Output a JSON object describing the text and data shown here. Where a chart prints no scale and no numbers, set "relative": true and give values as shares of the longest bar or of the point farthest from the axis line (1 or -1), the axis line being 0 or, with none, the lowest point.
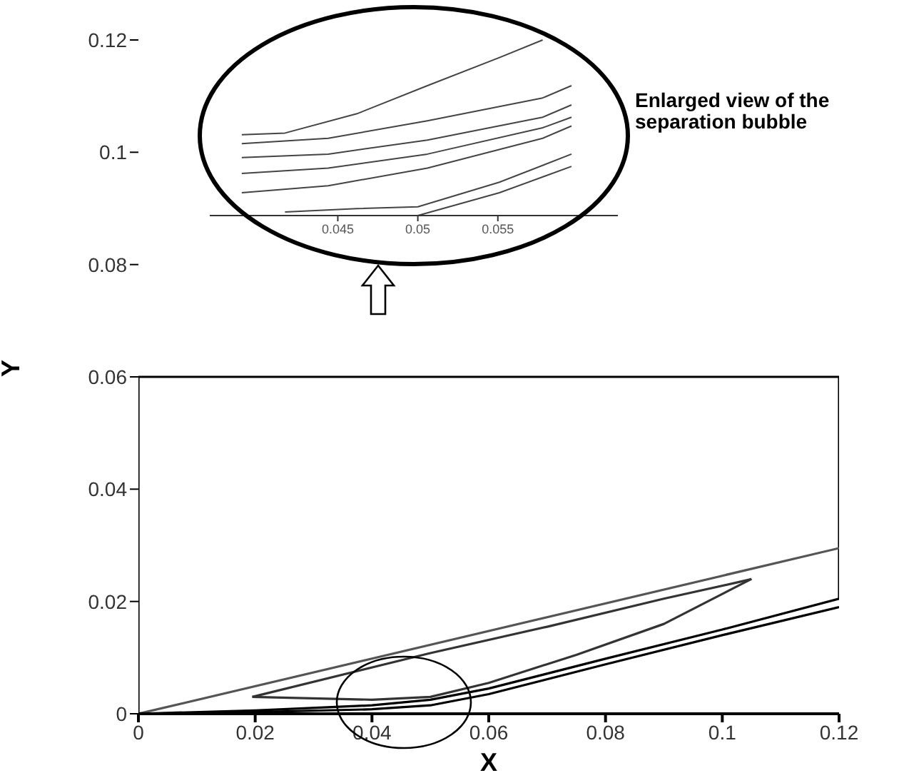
{
  "chart_data": [
    {
      "type": "line",
      "xlabel": "X",
      "ylabel": "Y",
      "xlim": [
        0,
        0.12
      ],
      "ylim": [
        0,
        0.12
      ],
      "xticks": [
        0,
        0.02,
        0.04,
        0.06,
        0.08,
        0.1,
        0.12
      ],
      "yticks": [
        0,
        0.02,
        0.04,
        0.06,
        0.08,
        0.1,
        0.12
      ],
      "marker": "none",
      "series": [
        {
          "color": "#000000",
          "x": [
            0,
            0,
            0.12,
            0.12
          ],
          "values": [
            0,
            0.06,
            0.06,
            0.0205
          ]
        },
        {
          "color": "#555555",
          "x": [
            0,
            0.12
          ],
          "values": [
            0,
            0.0295
          ]
        },
        {
          "color": "#333333",
          "x": [
            0.0195,
            0.05,
            0.07,
            0.09,
            0.103,
            0.105
          ],
          "values": [
            0.003,
            0.0108,
            0.0155,
            0.0205,
            0.0235,
            0.024
          ]
        },
        {
          "color": "#333333",
          "x": [
            0.0195,
            0.04,
            0.05,
            0.06,
            0.075,
            0.09,
            0.105
          ],
          "values": [
            0.003,
            0.0025,
            0.003,
            0.0055,
            0.0105,
            0.016,
            0.024
          ]
        },
        {
          "color": "#000000",
          "x": [
            0,
            0.02,
            0.04,
            0.05,
            0.06,
            0.08,
            0.1,
            0.12
          ],
          "values": [
            0,
            0.0006,
            0.0015,
            0.0025,
            0.0045,
            0.0098,
            0.015,
            0.0205
          ]
        },
        {
          "color": "#000000",
          "x": [
            0,
            0.02,
            0.04,
            0.05,
            0.06,
            0.08,
            0.1,
            0.12
          ],
          "values": [
            0,
            0.0003,
            0.0008,
            0.0015,
            0.0035,
            0.0088,
            0.014,
            0.019
          ]
        }
      ]
    },
    {
      "type": "line",
      "relative": true,
      "xlim": [
        0.037,
        0.0625
      ],
      "xticks": [
        0.045,
        0.05,
        0.055
      ],
      "tick_labels": "x",
      "marker": "none",
      "annotations": [
        "Enlarged view of the separation bubble"
      ],
      "series": [
        {
          "color": "#444444",
          "x": [
            0.039,
            0.0417,
            0.0462,
            0.0506,
            0.0551,
            0.0578
          ],
          "values": [
            0.46,
            0.47,
            0.58,
            0.74,
            0.9,
            1
          ]
        },
        {
          "color": "#444444",
          "x": [
            0.039,
            0.0444,
            0.0506,
            0.0578,
            0.0596
          ],
          "values": [
            0.41,
            0.44,
            0.54,
            0.67,
            0.74
          ]
        },
        {
          "color": "#444444",
          "x": [
            0.039,
            0.0444,
            0.0506,
            0.0578,
            0.0596
          ],
          "values": [
            0.33,
            0.35,
            0.43,
            0.56,
            0.63
          ]
        },
        {
          "color": "#444444",
          "x": [
            0.039,
            0.0444,
            0.0506,
            0.0578,
            0.0596
          ],
          "values": [
            0.24,
            0.27,
            0.35,
            0.5,
            0.56
          ]
        },
        {
          "color": "#444444",
          "x": [
            0.039,
            0.0444,
            0.0506,
            0.0578,
            0.0596
          ],
          "values": [
            0.13,
            0.17,
            0.27,
            0.44,
            0.51
          ]
        },
        {
          "color": "#444444",
          "x": [
            0.0417,
            0.0462,
            0.05,
            0.0551,
            0.0596
          ],
          "values": [
            0.02,
            0.04,
            0.05,
            0.19,
            0.35
          ]
        },
        {
          "color": "#444444",
          "x": [
            0.05,
            0.0551,
            0.0596
          ],
          "values": [
            0,
            0.13,
            0.28
          ]
        }
      ]
    }
  ]
}
